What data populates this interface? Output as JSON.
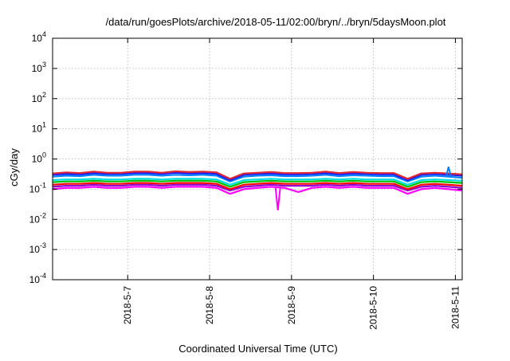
{
  "chart_data": {
    "type": "line",
    "title": "/data/run/goesPlots/archive/2018-05-11/02:00/bryn/../bryn/5daysMoon.plot",
    "xlabel": "Coordinated Universal Time (UTC)",
    "ylabel": "cGy/day",
    "y_scale": "log",
    "ylim": [
      0.0001,
      10000
    ],
    "y_ticks": [
      {
        "value": 0.0001,
        "base": "10",
        "exp": "-4"
      },
      {
        "value": 0.001,
        "base": "10",
        "exp": "-3"
      },
      {
        "value": 0.01,
        "base": "10",
        "exp": "-2"
      },
      {
        "value": 0.1,
        "base": "10",
        "exp": "-1"
      },
      {
        "value": 1,
        "base": "10",
        "exp": "0"
      },
      {
        "value": 10,
        "base": "10",
        "exp": "1"
      },
      {
        "value": 100,
        "base": "10",
        "exp": "2"
      },
      {
        "value": 1000,
        "base": "10",
        "exp": "3"
      },
      {
        "value": 10000,
        "base": "10",
        "exp": "4"
      }
    ],
    "xlim": [
      "2018-05-06T02:00",
      "2018-05-11T02:00"
    ],
    "x_ticks": [
      {
        "value": "2018-05-07T00:00",
        "label": "2018-5-7"
      },
      {
        "value": "2018-05-08T00:00",
        "label": "2018-5-8"
      },
      {
        "value": "2018-05-09T00:00",
        "label": "2018-5-9"
      },
      {
        "value": "2018-05-10T00:00",
        "label": "2018-5-10"
      },
      {
        "value": "2018-05-11T00:00",
        "label": "2018-5-11"
      }
    ],
    "grid": true,
    "x": [
      "2018-05-06T02:00",
      "2018-05-06T06:00",
      "2018-05-06T10:00",
      "2018-05-06T14:00",
      "2018-05-06T18:00",
      "2018-05-06T22:00",
      "2018-05-07T02:00",
      "2018-05-07T06:00",
      "2018-05-07T10:00",
      "2018-05-07T14:00",
      "2018-05-07T18:00",
      "2018-05-07T22:00",
      "2018-05-08T02:00",
      "2018-05-08T06:00",
      "2018-05-08T10:00",
      "2018-05-08T14:00",
      "2018-05-08T18:00",
      "2018-05-08T22:00",
      "2018-05-09T02:00",
      "2018-05-09T06:00",
      "2018-05-09T10:00",
      "2018-05-09T14:00",
      "2018-05-09T18:00",
      "2018-05-09T22:00",
      "2018-05-10T02:00",
      "2018-05-10T06:00",
      "2018-05-10T10:00",
      "2018-05-10T14:00",
      "2018-05-10T18:00",
      "2018-05-10T22:00",
      "2018-05-11T02:00"
    ],
    "series": [
      {
        "color": "#ff00ff",
        "values": [
          0.1,
          0.11,
          0.11,
          0.12,
          0.11,
          0.11,
          0.12,
          0.12,
          0.11,
          0.12,
          0.12,
          0.12,
          0.11,
          0.07,
          0.1,
          0.11,
          0.12,
          0.11,
          0.08,
          0.11,
          0.12,
          0.11,
          0.12,
          0.11,
          0.11,
          0.11,
          0.07,
          0.1,
          0.11,
          0.1,
          0.09
        ]
      },
      {
        "color": "#9400d3",
        "values": [
          0.12,
          0.13,
          0.13,
          0.14,
          0.13,
          0.13,
          0.14,
          0.14,
          0.13,
          0.14,
          0.14,
          0.14,
          0.13,
          0.09,
          0.12,
          0.13,
          0.14,
          0.13,
          0.13,
          0.13,
          0.14,
          0.13,
          0.14,
          0.13,
          0.13,
          0.13,
          0.09,
          0.12,
          0.13,
          0.12,
          0.11
        ]
      },
      {
        "color": "#ff0000",
        "values": [
          0.14,
          0.15,
          0.15,
          0.16,
          0.15,
          0.15,
          0.16,
          0.16,
          0.15,
          0.16,
          0.16,
          0.16,
          0.15,
          0.1,
          0.14,
          0.15,
          0.16,
          0.15,
          0.15,
          0.15,
          0.16,
          0.15,
          0.16,
          0.15,
          0.15,
          0.15,
          0.1,
          0.14,
          0.15,
          0.14,
          0.13
        ]
      },
      {
        "color": "#00c000",
        "values": [
          0.17,
          0.18,
          0.18,
          0.19,
          0.18,
          0.18,
          0.19,
          0.19,
          0.18,
          0.19,
          0.19,
          0.19,
          0.18,
          0.12,
          0.17,
          0.18,
          0.19,
          0.18,
          0.18,
          0.18,
          0.19,
          0.18,
          0.19,
          0.18,
          0.18,
          0.18,
          0.12,
          0.17,
          0.18,
          0.17,
          0.16
        ]
      },
      {
        "color": "#00e0e0",
        "values": [
          0.2,
          0.21,
          0.21,
          0.22,
          0.21,
          0.21,
          0.22,
          0.22,
          0.21,
          0.22,
          0.22,
          0.22,
          0.21,
          0.14,
          0.2,
          0.21,
          0.22,
          0.21,
          0.21,
          0.21,
          0.22,
          0.21,
          0.22,
          0.21,
          0.21,
          0.21,
          0.14,
          0.2,
          0.21,
          0.2,
          0.19
        ]
      },
      {
        "color": "#0080ff",
        "values": [
          0.26,
          0.28,
          0.27,
          0.3,
          0.28,
          0.28,
          0.3,
          0.3,
          0.28,
          0.3,
          0.29,
          0.3,
          0.28,
          0.18,
          0.26,
          0.28,
          0.29,
          0.27,
          0.27,
          0.28,
          0.3,
          0.27,
          0.29,
          0.28,
          0.27,
          0.27,
          0.18,
          0.26,
          0.28,
          0.26,
          0.24
        ]
      },
      {
        "color": "#1a1aff",
        "values": [
          0.3,
          0.32,
          0.31,
          0.34,
          0.32,
          0.32,
          0.34,
          0.34,
          0.32,
          0.35,
          0.33,
          0.34,
          0.32,
          0.2,
          0.3,
          0.32,
          0.33,
          0.31,
          0.31,
          0.32,
          0.34,
          0.31,
          0.33,
          0.32,
          0.31,
          0.31,
          0.2,
          0.3,
          0.32,
          0.3,
          0.28
        ]
      },
      {
        "color": "#e0262e",
        "values": [
          0.33,
          0.36,
          0.34,
          0.38,
          0.35,
          0.35,
          0.38,
          0.38,
          0.35,
          0.39,
          0.37,
          0.38,
          0.36,
          0.22,
          0.33,
          0.35,
          0.37,
          0.34,
          0.34,
          0.35,
          0.38,
          0.34,
          0.37,
          0.35,
          0.34,
          0.34,
          0.22,
          0.33,
          0.35,
          0.33,
          0.31
        ]
      }
    ],
    "spikes": [
      {
        "x": "2018-05-08T20:00",
        "value": 0.02,
        "color": "#ff00ff"
      },
      {
        "x": "2018-05-10T22:00",
        "value": 0.55,
        "color": "#0080ff"
      }
    ]
  }
}
